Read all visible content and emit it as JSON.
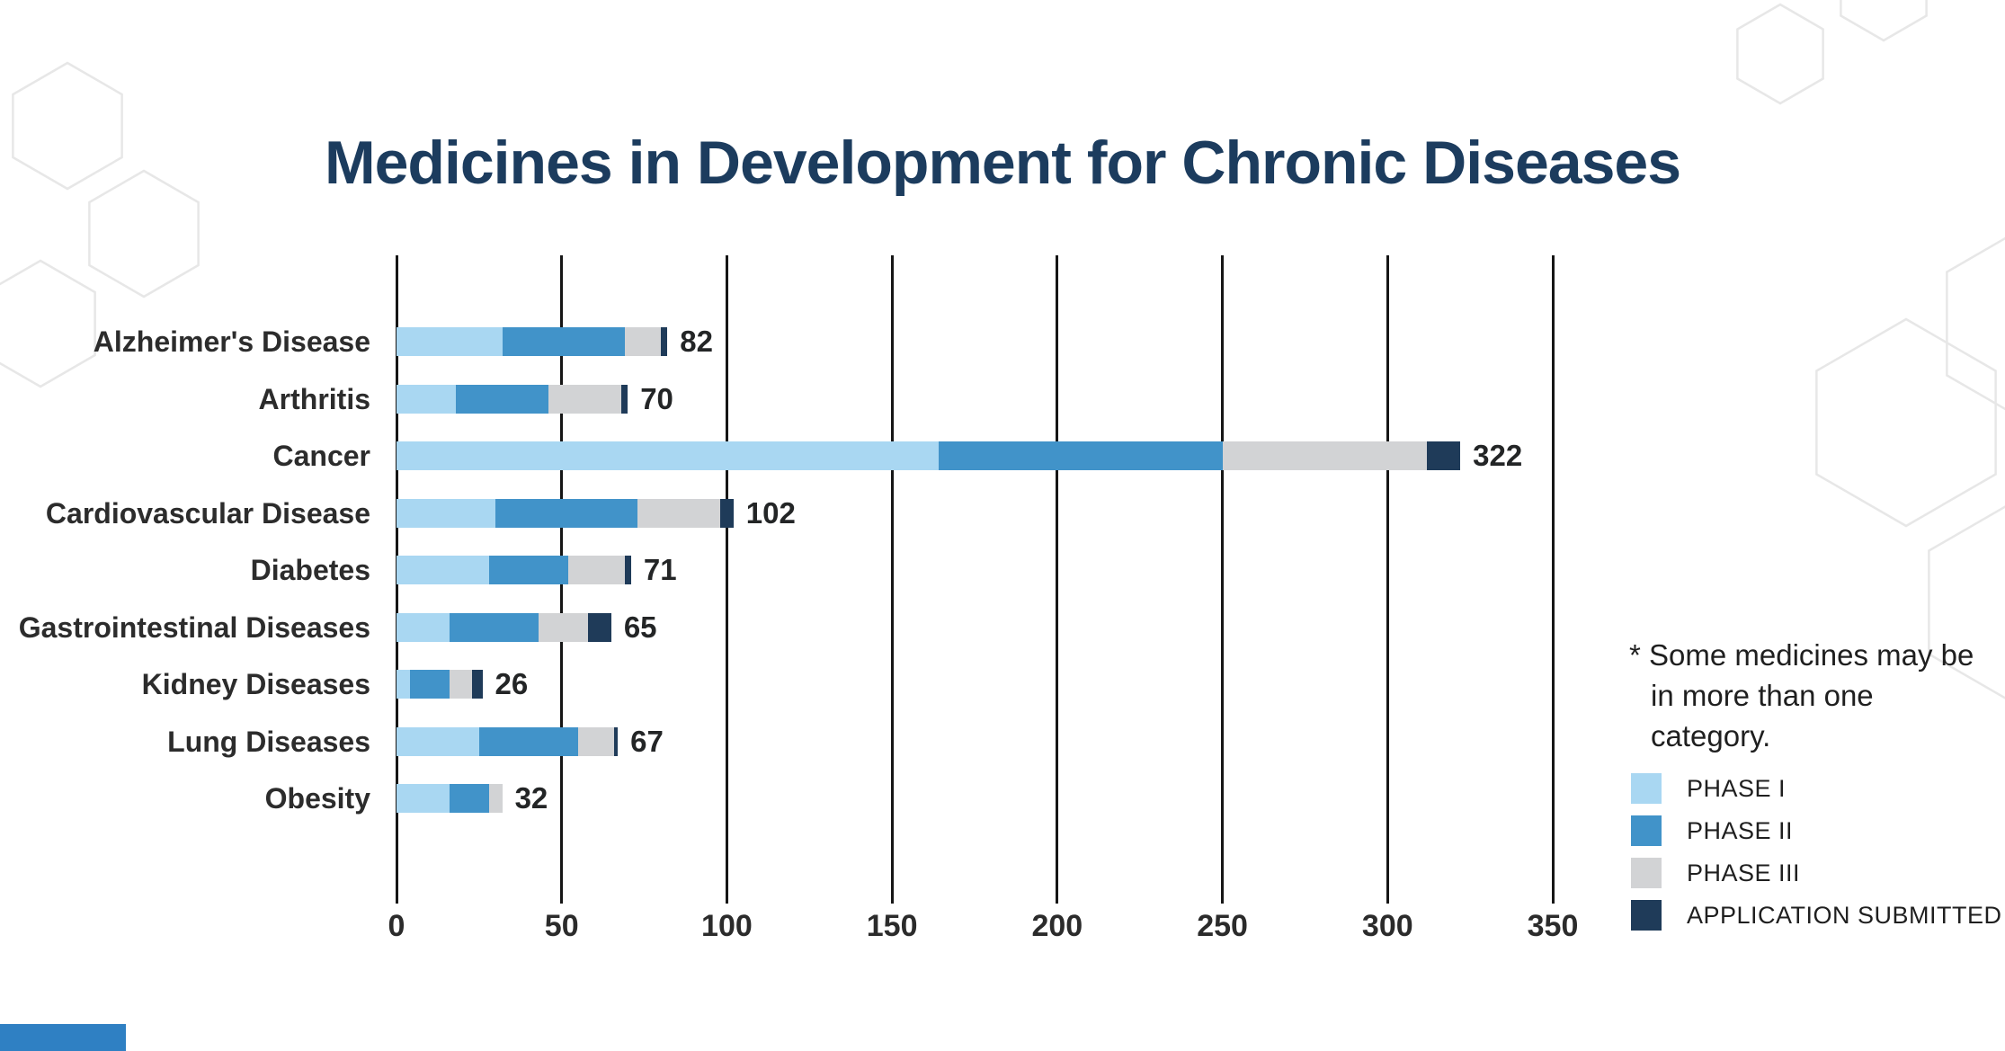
{
  "title": "Medicines in Development for Chronic Diseases",
  "note": "* Some medicines may be in more than one category.",
  "legend": {
    "items": [
      {
        "label": "PHASE I",
        "color": "#A9D7F2"
      },
      {
        "label": "PHASE II",
        "color": "#4193C9"
      },
      {
        "label": "PHASE III",
        "color": "#D2D3D5"
      },
      {
        "label": "APPLICATION SUBMITTED",
        "color": "#1F3B59"
      }
    ]
  },
  "chart_data": {
    "type": "bar",
    "orientation": "horizontal",
    "stacked": true,
    "title": "Medicines in Development for Chronic Diseases",
    "categories": [
      "Alzheimer's Disease",
      "Arthritis",
      "Cancer",
      "Cardiovascular Disease",
      "Diabetes",
      "Gastrointestinal Diseases",
      "Kidney Diseases",
      "Lung Diseases",
      "Obesity"
    ],
    "series": [
      {
        "name": "PHASE I",
        "values": [
          32,
          18,
          164,
          30,
          28,
          16,
          4,
          25,
          16
        ]
      },
      {
        "name": "PHASE II",
        "values": [
          37,
          28,
          86,
          43,
          24,
          27,
          12,
          30,
          12
        ]
      },
      {
        "name": "PHASE III",
        "values": [
          11,
          22,
          62,
          25,
          17,
          15,
          7,
          11,
          4
        ]
      },
      {
        "name": "APPLICATION SUBMITTED",
        "values": [
          2,
          2,
          10,
          4,
          2,
          7,
          3,
          1,
          0
        ]
      }
    ],
    "totals": [
      82,
      70,
      322,
      102,
      71,
      65,
      26,
      67,
      32
    ],
    "xlim": [
      0,
      350
    ],
    "xticks": [
      0,
      50,
      100,
      150,
      200,
      250,
      300,
      350
    ],
    "grid": "vertical",
    "legend_position": "right",
    "annotation": "* Some medicines may be in more than one category."
  },
  "colors": {
    "title": "#1C3C5E",
    "grid": "#161616",
    "accent_bar": "#2F80C3"
  }
}
